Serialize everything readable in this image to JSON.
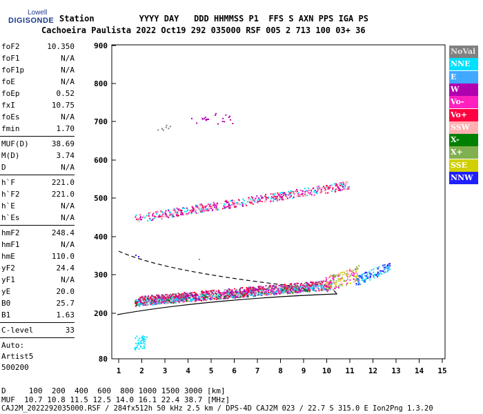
{
  "logo": {
    "top": "Lowell",
    "main": "DIGISONDE"
  },
  "header": {
    "row1": "Station         YYYY DAY   DDD HHMMSS P1  FFS S AXN PPS IGA PS",
    "row2": "Cachoeira Paulista 2022 Oct19 292 035000 RSF 005 2 713 100 03+ 36"
  },
  "params": {
    "group1": [
      {
        "label": "foF2",
        "value": "10.350"
      },
      {
        "label": "foF1",
        "value": "N/A"
      },
      {
        "label": "foF1p",
        "value": "N/A"
      },
      {
        "label": "foE",
        "value": "N/A"
      },
      {
        "label": "foEp",
        "value": "0.52"
      },
      {
        "label": "fxI",
        "value": "10.75"
      },
      {
        "label": "foEs",
        "value": "N/A"
      },
      {
        "label": "fmin",
        "value": "1.70"
      }
    ],
    "group2": [
      {
        "label": "MUF(D)",
        "value": "38.69"
      },
      {
        "label": "M(D)",
        "value": "3.74"
      },
      {
        "label": "D",
        "value": "N/A"
      }
    ],
    "group3": [
      {
        "label": "h`F",
        "value": "221.0"
      },
      {
        "label": "h`F2",
        "value": "221.0"
      },
      {
        "label": "h`E",
        "value": "N/A"
      },
      {
        "label": "h`Es",
        "value": "N/A"
      }
    ],
    "group4": [
      {
        "label": "hmF2",
        "value": "248.4"
      },
      {
        "label": "hmF1",
        "value": "N/A"
      },
      {
        "label": "hmE",
        "value": "110.0"
      },
      {
        "label": "yF2",
        "value": "24.4"
      },
      {
        "label": "yF1",
        "value": "N/A"
      },
      {
        "label": "yE",
        "value": "20.0"
      },
      {
        "label": "B0",
        "value": "25.7"
      },
      {
        "label": "B1",
        "value": "1.63"
      }
    ],
    "group5": [
      {
        "label": "C-level",
        "value": "33"
      }
    ],
    "auto": [
      "Auto:",
      "Artist5",
      "500200"
    ]
  },
  "legend": [
    {
      "label": "NoVal",
      "color": "#808080"
    },
    {
      "label": "NNE",
      "color": "#00e0ff"
    },
    {
      "label": "E",
      "color": "#40a8ff"
    },
    {
      "label": "W",
      "color": "#b000b0"
    },
    {
      "label": "Vo-",
      "color": "#ff20c0"
    },
    {
      "label": "Vo+",
      "color": "#ff0040"
    },
    {
      "label": "SSW",
      "color": "#ffb0b0"
    },
    {
      "label": "X-",
      "color": "#008000"
    },
    {
      "label": "X+",
      "color": "#80b050"
    },
    {
      "label": "SSE",
      "color": "#d0d000"
    },
    {
      "label": "NNW",
      "color": "#2020ff"
    }
  ],
  "chart_data": {
    "type": "scatter",
    "x_ticks": [
      1,
      2,
      3,
      4,
      5,
      6,
      7,
      8,
      9,
      10,
      11,
      12,
      13,
      14,
      15
    ],
    "y_ticks": [
      80,
      200,
      300,
      400,
      500,
      600,
      700,
      800,
      900
    ],
    "xlim": [
      1,
      15
    ],
    "ylim": [
      80,
      900
    ],
    "y_scale": "log",
    "grid": false
  },
  "footer": {
    "line1": "D     100  200  400  600  800 1000 1500 3000 [km]",
    "line2": "MUF  10.7 10.8 11.5 12.5 14.0 16.1 22.4 38.7 [MHz]",
    "line3": "CAJ2M_2022292035000.RSF / 284fx512h 50 kHz 2.5 km / DPS-4D CAJ2M 023 / 22.7 S 315.0 E Ion2Png 1.3.20"
  }
}
